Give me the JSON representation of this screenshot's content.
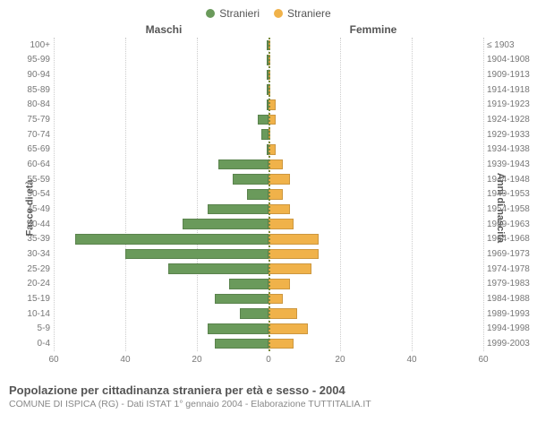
{
  "chart": {
    "type": "population-pyramid",
    "legend": {
      "male": {
        "label": "Stranieri",
        "color": "#6a9a5b"
      },
      "female": {
        "label": "Straniere",
        "color": "#f0b24a"
      }
    },
    "headers": {
      "male": "Maschi",
      "female": "Femmine"
    },
    "axis_labels": {
      "left": "Fasce di età",
      "right": "Anni di nascita"
    },
    "xlim": 60,
    "x_ticks": [
      60,
      40,
      20,
      0,
      20,
      40,
      60
    ],
    "divider_color": "#7a8a3a",
    "grid_color": "#cccccc",
    "background_color": "#ffffff",
    "bar_height_ratio": 0.7,
    "label_fontsize": 10,
    "axis_label_fontsize": 11,
    "legend_fontsize": 12,
    "rows": [
      {
        "age": "100+",
        "birth": "≤ 1903",
        "m": 0,
        "f": 0
      },
      {
        "age": "95-99",
        "birth": "1904-1908",
        "m": 0,
        "f": 0
      },
      {
        "age": "90-94",
        "birth": "1909-1913",
        "m": 0,
        "f": 0
      },
      {
        "age": "85-89",
        "birth": "1914-1918",
        "m": 0,
        "f": 0
      },
      {
        "age": "80-84",
        "birth": "1919-1923",
        "m": 0,
        "f": 2
      },
      {
        "age": "75-79",
        "birth": "1924-1928",
        "m": 3,
        "f": 2
      },
      {
        "age": "70-74",
        "birth": "1929-1933",
        "m": 2,
        "f": 0
      },
      {
        "age": "65-69",
        "birth": "1934-1938",
        "m": 0,
        "f": 2
      },
      {
        "age": "60-64",
        "birth": "1939-1943",
        "m": 14,
        "f": 4
      },
      {
        "age": "55-59",
        "birth": "1944-1948",
        "m": 10,
        "f": 6
      },
      {
        "age": "50-54",
        "birth": "1949-1953",
        "m": 6,
        "f": 4
      },
      {
        "age": "45-49",
        "birth": "1954-1958",
        "m": 17,
        "f": 6
      },
      {
        "age": "40-44",
        "birth": "1959-1963",
        "m": 24,
        "f": 7
      },
      {
        "age": "35-39",
        "birth": "1964-1968",
        "m": 54,
        "f": 14
      },
      {
        "age": "30-34",
        "birth": "1969-1973",
        "m": 40,
        "f": 14
      },
      {
        "age": "25-29",
        "birth": "1974-1978",
        "m": 28,
        "f": 12
      },
      {
        "age": "20-24",
        "birth": "1979-1983",
        "m": 11,
        "f": 6
      },
      {
        "age": "15-19",
        "birth": "1984-1988",
        "m": 15,
        "f": 4
      },
      {
        "age": "10-14",
        "birth": "1989-1993",
        "m": 8,
        "f": 8
      },
      {
        "age": "5-9",
        "birth": "1994-1998",
        "m": 17,
        "f": 11
      },
      {
        "age": "0-4",
        "birth": "1999-2003",
        "m": 15,
        "f": 7
      }
    ]
  },
  "footer": {
    "title": "Popolazione per cittadinanza straniera per età e sesso - 2004",
    "subtitle": "COMUNE DI ISPICA (RG) - Dati ISTAT 1° gennaio 2004 - Elaborazione TUTTITALIA.IT",
    "title_color": "#555555",
    "subtitle_color": "#888888",
    "title_fontsize": 13,
    "subtitle_fontsize": 10.5
  }
}
